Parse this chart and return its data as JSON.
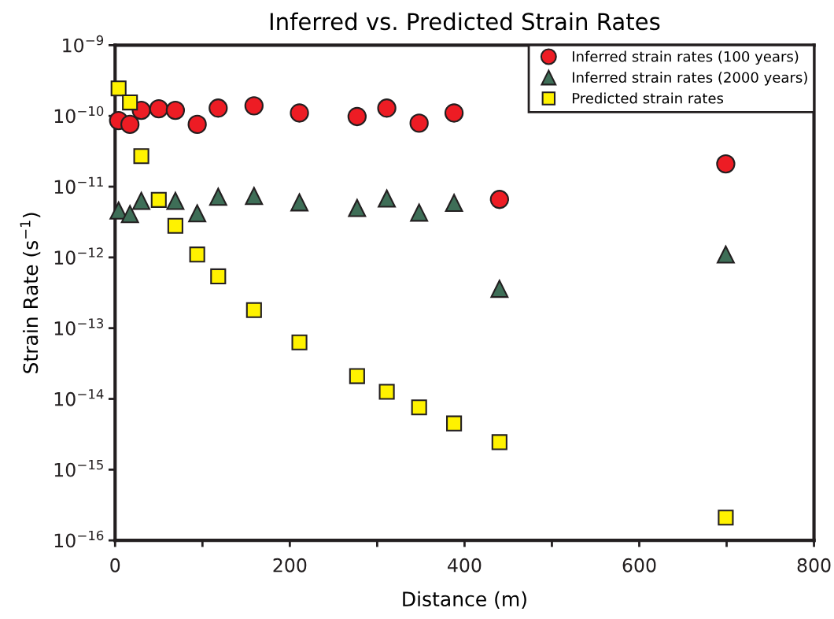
{
  "chart_data": {
    "type": "scatter",
    "title": "Inferred vs. Predicted Strain Rates",
    "xlabel": "Distance (m)",
    "ylabel": "Strain Rate (s$^{−1}$)",
    "log": "y",
    "xlim": [
      0,
      800
    ],
    "xticks": [
      0,
      {
        "value": 100,
        "label": null
      },
      200,
      {
        "value": 300,
        "label": null
      },
      400,
      {
        "value": 500,
        "label": null
      },
      600,
      {
        "value": 700,
        "label": null
      },
      800
    ],
    "ylim": [
      1e-16,
      1e-09
    ],
    "yticks": [
      {
        "value": 1e-16,
        "label": "10$^{−16}$"
      },
      {
        "value": 1e-15,
        "label": "10$^{−15}$"
      },
      {
        "value": 1e-14,
        "label": "10$^{−14}$"
      },
      {
        "value": 1e-13,
        "label": "10$^{−13}$"
      },
      {
        "value": 1e-12,
        "label": "10$^{−12}$"
      },
      {
        "value": 1e-11,
        "label": "10$^{−11}$"
      },
      {
        "value": 1e-10,
        "label": "10$^{−10}$"
      },
      {
        "value": 1e-09,
        "label": "10$^{−9}$"
      }
    ],
    "x": [
      4,
      17,
      30,
      50,
      69,
      94,
      118,
      159,
      211,
      277,
      311,
      348,
      388,
      440,
      699
    ],
    "grid": false,
    "legend": "top right",
    "series": [
      {
        "name": "Inferred strain rates (100 years)",
        "color": "#ed1c24",
        "marker": "circle",
        "values": [
          8.6e-11,
          7.6e-11,
          1.2e-10,
          1.26e-10,
          1.2e-10,
          7.6e-11,
          1.29e-10,
          1.39e-10,
          1.1e-10,
          9.8e-11,
          1.29e-10,
          7.9e-11,
          1.1e-10,
          6.6e-12,
          2.1e-11
        ]
      },
      {
        "name": "Inferred strain rates (2000 years)",
        "color": "#3e6e57",
        "marker": "triangle",
        "values": [
          4.6e-12,
          4.1e-12,
          6.3e-12,
          null,
          6.3e-12,
          4.2e-12,
          7.2e-12,
          7.4e-12,
          6e-12,
          5e-12,
          6.8e-12,
          4.3e-12,
          5.9e-12,
          3.6e-13,
          1.1e-12
        ]
      },
      {
        "name": "Predicted strain rates",
        "color": "#fff200",
        "marker": "square",
        "values": [
          2.45e-10,
          1.55e-10,
          2.7e-11,
          6.5e-12,
          2.8e-12,
          1.1e-12,
          5.4e-13,
          1.8e-13,
          6.3e-14,
          2.1e-14,
          1.26e-14,
          7.6e-15,
          4.5e-15,
          2.45e-15,
          2.1e-16
        ]
      }
    ]
  }
}
